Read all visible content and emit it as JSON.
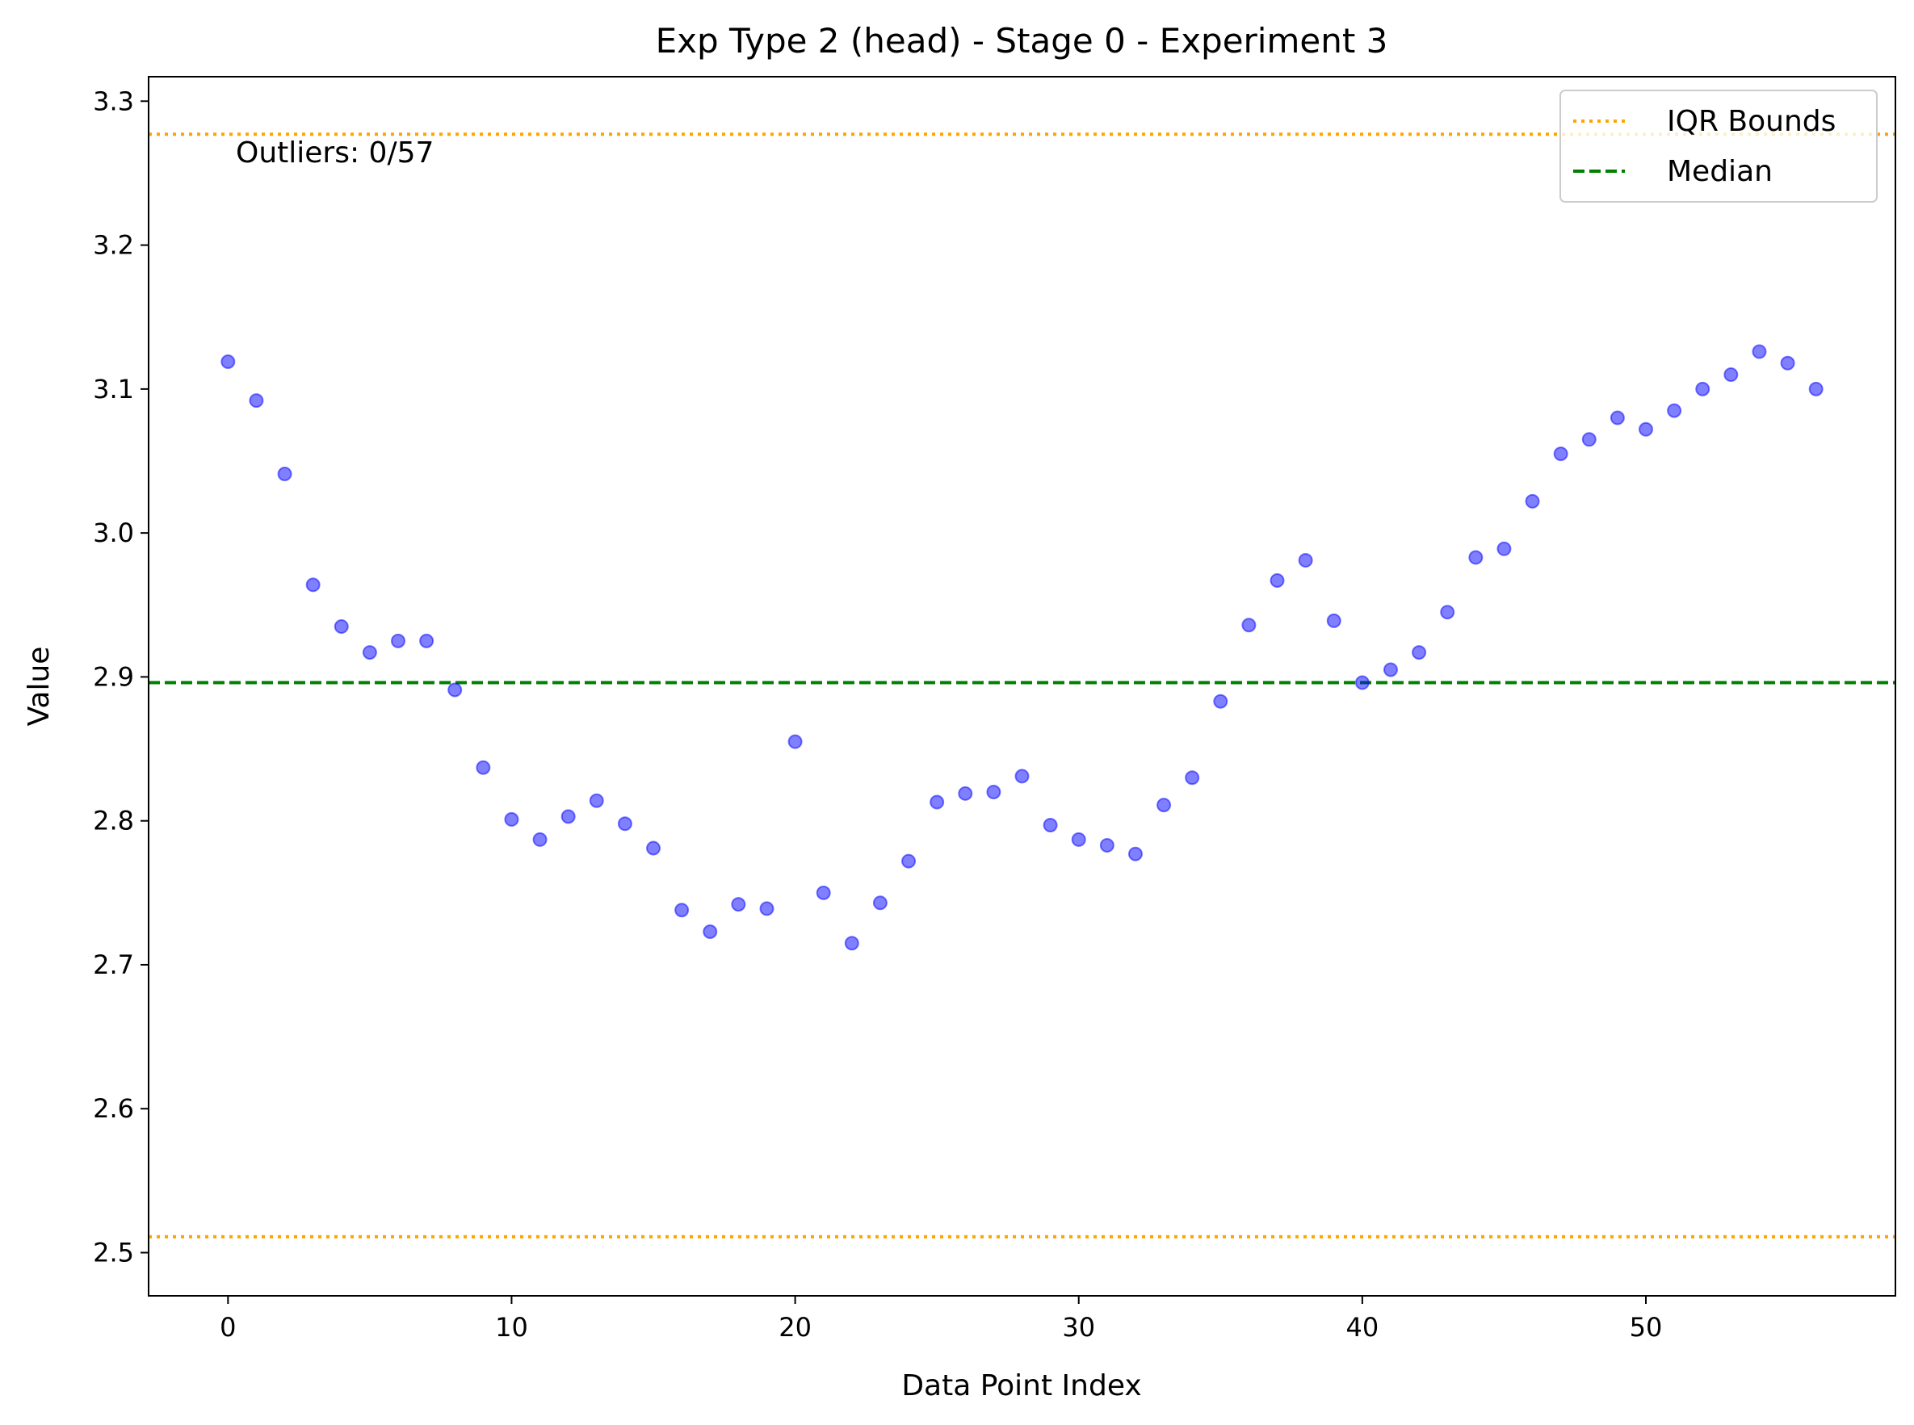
{
  "chart_data": {
    "type": "scatter",
    "title": "Exp Type 2 (head) - Stage 0 - Experiment 3",
    "xlabel": "Data Point Index",
    "ylabel": "Value",
    "xlim": [
      -2.8,
      58.8
    ],
    "ylim": [
      2.47,
      3.317
    ],
    "xticks": [
      0,
      10,
      20,
      30,
      40,
      50
    ],
    "xtick_labels": [
      "0",
      "10",
      "20",
      "30",
      "40",
      "50"
    ],
    "yticks": [
      2.5,
      2.6,
      2.7,
      2.8,
      2.9,
      3.0,
      3.1,
      3.2,
      3.3
    ],
    "ytick_labels": [
      "2.5",
      "2.6",
      "2.7",
      "2.8",
      "2.9",
      "3.0",
      "3.1",
      "3.2",
      "3.3"
    ],
    "grid": false,
    "legend_position": "top-right",
    "series": [
      {
        "x": [
          0,
          1,
          2,
          3,
          4,
          5,
          6,
          7,
          8,
          9,
          10,
          11,
          12,
          13,
          14,
          15,
          16,
          17,
          18,
          19,
          20,
          21,
          22,
          23,
          24,
          25,
          26,
          27,
          28,
          29,
          30,
          31,
          32,
          33,
          34,
          35,
          36,
          37,
          38,
          39,
          40,
          41,
          42,
          43,
          44,
          45,
          46,
          47,
          48,
          49,
          50,
          51,
          52,
          53,
          54,
          55,
          56
        ],
        "values": [
          3.119,
          3.092,
          3.041,
          2.964,
          2.935,
          2.917,
          2.925,
          2.925,
          2.891,
          2.837,
          2.801,
          2.787,
          2.803,
          2.814,
          2.798,
          2.781,
          2.738,
          2.723,
          2.742,
          2.739,
          2.855,
          2.75,
          2.715,
          2.743,
          2.772,
          2.813,
          2.819,
          2.82,
          2.831,
          2.797,
          2.787,
          2.783,
          2.777,
          2.811,
          2.83,
          2.883,
          2.936,
          2.967,
          2.981,
          2.939,
          2.896,
          2.905,
          2.917,
          2.945,
          2.983,
          2.989,
          3.022,
          3.055,
          3.065,
          3.08,
          3.072,
          3.085,
          3.1,
          3.11,
          3.126,
          3.118,
          3.1
        ],
        "color": "#0000ff"
      }
    ],
    "reference_lines": [
      {
        "name": "IQR Bounds",
        "values": [
          2.511,
          3.277
        ],
        "color": "#ffa500",
        "style": "dotted"
      },
      {
        "name": "Median",
        "values": [
          2.896
        ],
        "color": "#008000",
        "style": "dashed"
      }
    ],
    "annotation": "Outliers: 0/57"
  }
}
